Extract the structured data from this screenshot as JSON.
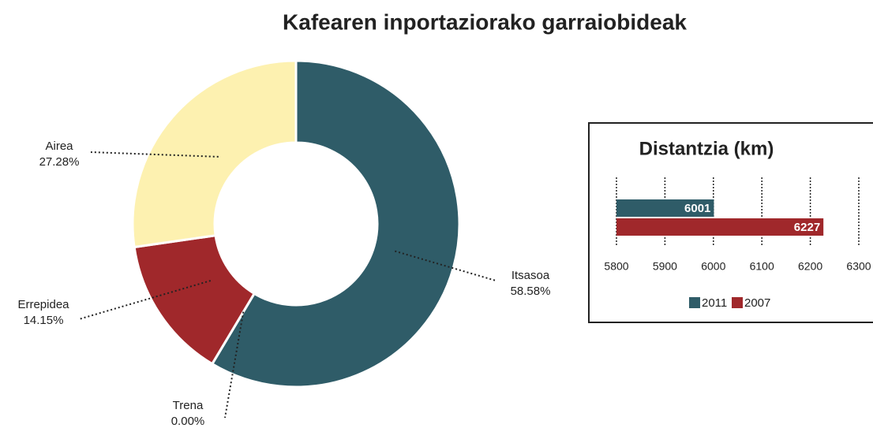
{
  "chart_data": [
    {
      "type": "donut",
      "title": "Kafearen inportaziorako garraiobideak",
      "categories": [
        "Itsasoa",
        "Trena",
        "Errepidea",
        "Airea"
      ],
      "values": [
        58.58,
        0.0,
        14.15,
        27.28
      ],
      "value_labels": [
        "58.58%",
        "0.00%",
        "14.15%",
        "27.28%"
      ],
      "colors": [
        "#2f5c68",
        "#7f7f7f",
        "#a0282b",
        "#fdf1b0"
      ]
    },
    {
      "type": "hbar",
      "title": "Distantzia (km)",
      "series": [
        {
          "name": "2011",
          "color": "#2f5c68",
          "values": [
            6001
          ]
        },
        {
          "name": "2007",
          "color": "#a0282b",
          "values": [
            6227
          ]
        }
      ],
      "xlim": [
        5800,
        6300
      ],
      "xticks": [
        5800,
        5900,
        6000,
        6100,
        6200,
        6300
      ],
      "grid": true,
      "legend": "bottom"
    }
  ]
}
